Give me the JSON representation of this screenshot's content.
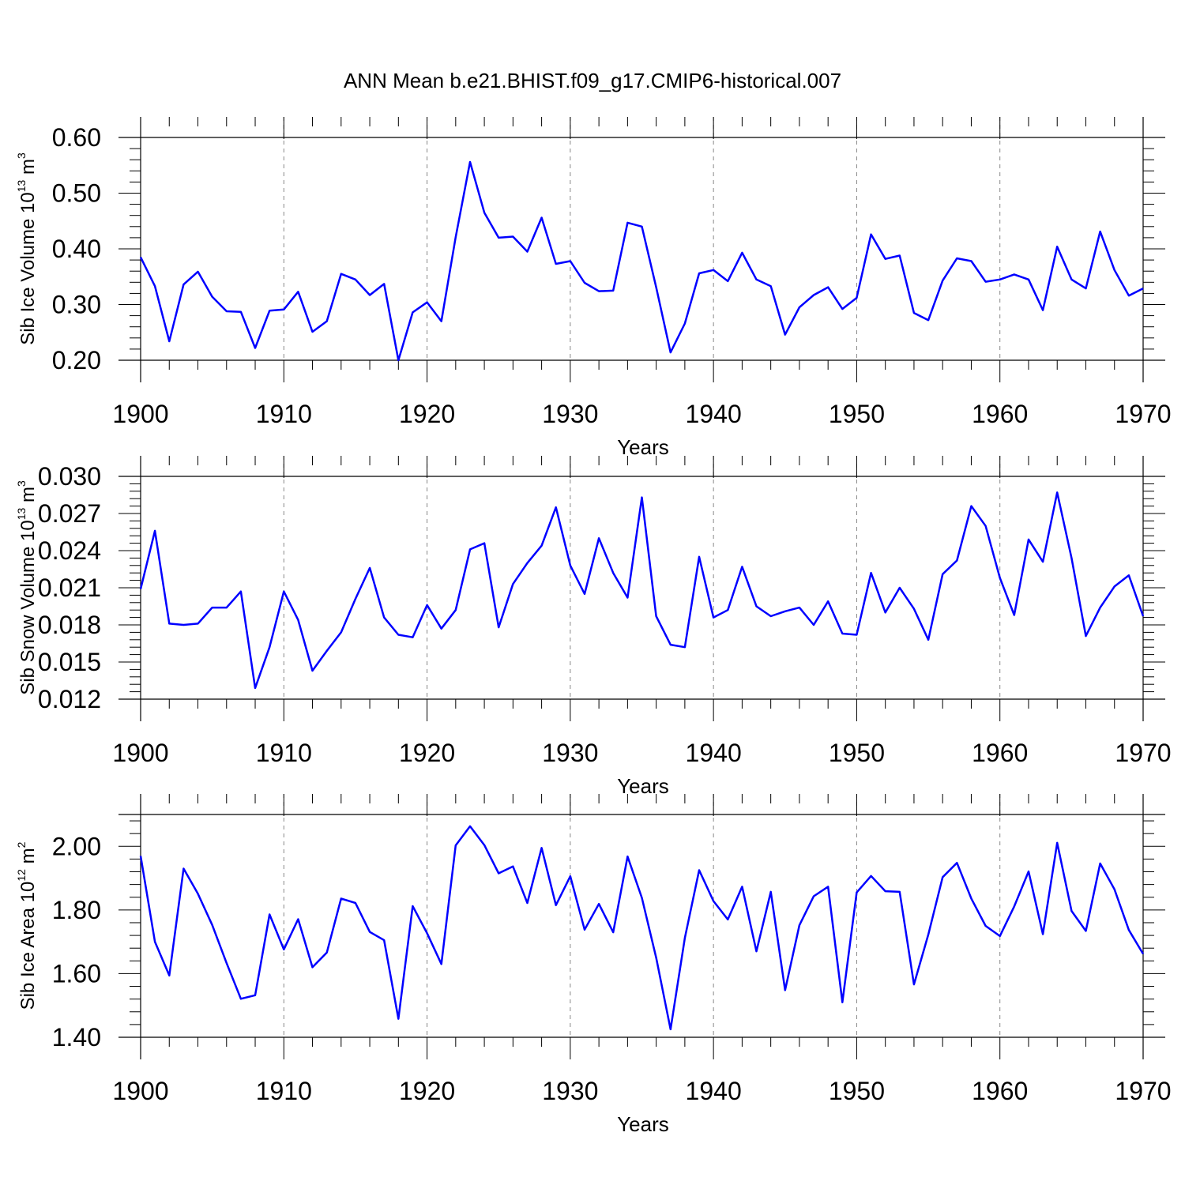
{
  "chart_data": {
    "title": "ANN Mean b.e21.BHIST.f09_g17.CMIP6-historical.007",
    "type": "line",
    "line_color": "#0000ff",
    "panels": [
      {
        "id": "ice-volume",
        "ylabel_main": "Sib Ice Volume 10",
        "ylabel_exp": "13",
        "ylabel_unit": " m",
        "ylabel_unit_exp": "3",
        "xlabel": "Years",
        "ylim": [
          0.2,
          0.6
        ],
        "yticks": [
          0.2,
          0.3,
          0.4,
          0.5,
          0.6
        ],
        "ytick_labels": [
          "0.20",
          "0.30",
          "0.40",
          "0.50",
          "0.60"
        ],
        "xlim": [
          1900,
          1970
        ],
        "xtick_labels": [
          "1900",
          "1910",
          "1920",
          "1930",
          "1940",
          "1950",
          "1960",
          "1970"
        ],
        "x_start": 1900,
        "values": [
          0.385,
          0.333,
          0.234,
          0.336,
          0.359,
          0.314,
          0.288,
          0.287,
          0.222,
          0.289,
          0.291,
          0.323,
          0.251,
          0.27,
          0.355,
          0.345,
          0.317,
          0.337,
          0.2,
          0.286,
          0.304,
          0.27,
          0.421,
          0.556,
          0.465,
          0.42,
          0.422,
          0.395,
          0.456,
          0.373,
          0.378,
          0.339,
          0.324,
          0.325,
          0.447,
          0.44,
          0.331,
          0.214,
          0.266,
          0.356,
          0.362,
          0.342,
          0.393,
          0.345,
          0.333,
          0.246,
          0.295,
          0.317,
          0.331,
          0.292,
          0.312,
          0.426,
          0.382,
          0.388,
          0.285,
          0.272,
          0.343,
          0.383,
          0.378,
          0.341,
          0.345,
          0.354,
          0.345,
          0.29,
          0.404,
          0.345,
          0.329,
          0.431,
          0.362,
          0.316,
          0.329
        ]
      },
      {
        "id": "snow-volume",
        "ylabel_main": "Sib Snow Volume 10",
        "ylabel_exp": "13",
        "ylabel_unit": " m",
        "ylabel_unit_exp": "3",
        "xlabel": "Years",
        "ylim": [
          0.012,
          0.03
        ],
        "yticks": [
          0.012,
          0.015,
          0.018,
          0.021,
          0.024,
          0.027,
          0.03
        ],
        "ytick_labels": [
          "0.012",
          "0.015",
          "0.018",
          "0.021",
          "0.024",
          "0.027",
          "0.030"
        ],
        "xlim": [
          1900,
          1970
        ],
        "xtick_labels": [
          "1900",
          "1910",
          "1920",
          "1930",
          "1940",
          "1950",
          "1960",
          "1970"
        ],
        "x_start": 1900,
        "values": [
          0.0209,
          0.0256,
          0.0181,
          0.018,
          0.0181,
          0.0194,
          0.0194,
          0.0207,
          0.0129,
          0.0162,
          0.0207,
          0.0184,
          0.0143,
          0.0159,
          0.0174,
          0.0201,
          0.0226,
          0.0186,
          0.0172,
          0.017,
          0.0196,
          0.0177,
          0.0192,
          0.0241,
          0.0246,
          0.0178,
          0.0213,
          0.023,
          0.0244,
          0.0275,
          0.0228,
          0.0205,
          0.025,
          0.0222,
          0.0202,
          0.0283,
          0.0187,
          0.0164,
          0.0162,
          0.0235,
          0.0186,
          0.0192,
          0.0227,
          0.0195,
          0.0187,
          0.0191,
          0.0194,
          0.018,
          0.0199,
          0.0173,
          0.0172,
          0.0222,
          0.019,
          0.021,
          0.0193,
          0.0168,
          0.0221,
          0.0232,
          0.0276,
          0.026,
          0.0218,
          0.0188,
          0.0249,
          0.0231,
          0.0287,
          0.0234,
          0.0171,
          0.0194,
          0.0211,
          0.022,
          0.0187
        ]
      },
      {
        "id": "ice-area",
        "ylabel_main": "Sib Ice Area 10",
        "ylabel_exp": "12",
        "ylabel_unit": " m",
        "ylabel_unit_exp": "2",
        "xlabel": "Years",
        "ylim": [
          1.4,
          2.1
        ],
        "yticks": [
          1.4,
          1.6,
          1.8,
          2.0
        ],
        "ytick_labels": [
          "1.40",
          "1.60",
          "1.80",
          "2.00"
        ],
        "xlim": [
          1900,
          1970
        ],
        "xtick_labels": [
          "1900",
          "1910",
          "1920",
          "1930",
          "1940",
          "1950",
          "1960",
          "1970"
        ],
        "x_start": 1900,
        "values": [
          1.97,
          1.7,
          1.594,
          1.93,
          1.851,
          1.753,
          1.633,
          1.521,
          1.532,
          1.786,
          1.676,
          1.771,
          1.62,
          1.666,
          1.836,
          1.822,
          1.731,
          1.705,
          1.458,
          1.812,
          1.727,
          1.63,
          2.003,
          2.063,
          2.004,
          1.915,
          1.937,
          1.822,
          1.995,
          1.815,
          1.906,
          1.738,
          1.819,
          1.73,
          1.968,
          1.838,
          1.65,
          1.425,
          1.712,
          1.925,
          1.828,
          1.77,
          1.873,
          1.67,
          1.857,
          1.548,
          1.752,
          1.843,
          1.873,
          1.51,
          1.855,
          1.907,
          1.859,
          1.857,
          1.566,
          1.723,
          1.903,
          1.948,
          1.836,
          1.75,
          1.718,
          1.811,
          1.921,
          1.724,
          2.011,
          1.797,
          1.734,
          1.946,
          1.865,
          1.737,
          1.662
        ]
      }
    ]
  }
}
